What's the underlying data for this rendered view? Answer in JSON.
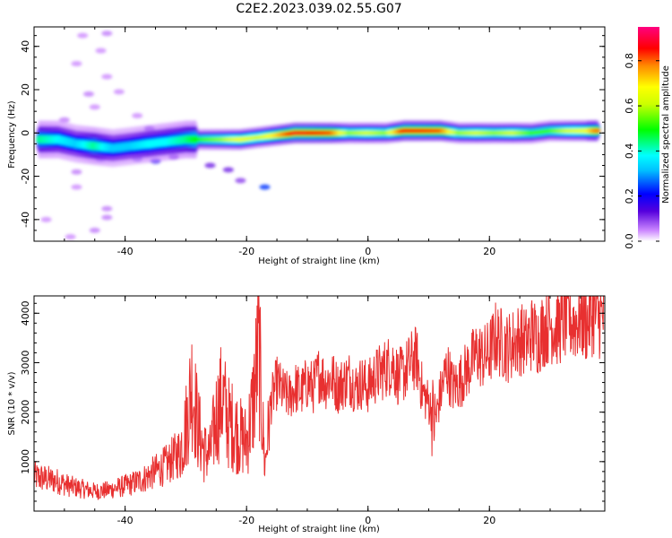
{
  "title": "C2E2.2023.039.02.55.G07",
  "chart_data": [
    {
      "type": "heatmap",
      "xlabel": "Height of straight line (km)",
      "ylabel": "Frequency (Hz)",
      "xlim": [
        -55,
        39
      ],
      "ylim": [
        -50,
        49
      ],
      "xticks": [
        -40,
        -20,
        0,
        20
      ],
      "yticks": [
        -40,
        -20,
        0,
        20,
        40
      ],
      "colorbar": {
        "label": "Normalized spectral amplitude",
        "range": [
          0,
          0.95
        ],
        "ticks": [
          0.0,
          0.2,
          0.4,
          0.6,
          0.8
        ]
      },
      "ridge": [
        {
          "x": -54,
          "y": -3,
          "amp": 0.45
        },
        {
          "x": -51,
          "y": -3,
          "amp": 0.4
        },
        {
          "x": -48,
          "y": -5,
          "amp": 0.35
        },
        {
          "x": -45,
          "y": -6,
          "amp": 0.45
        },
        {
          "x": -42,
          "y": -7,
          "amp": 0.35
        },
        {
          "x": -39,
          "y": -6,
          "amp": 0.35
        },
        {
          "x": -36,
          "y": -5,
          "amp": 0.4
        },
        {
          "x": -33,
          "y": -4,
          "amp": 0.4
        },
        {
          "x": -30,
          "y": -3,
          "amp": 0.45
        },
        {
          "x": -27,
          "y": -3,
          "amp": 0.55
        },
        {
          "x": -24,
          "y": -3,
          "amp": 0.6
        },
        {
          "x": -21,
          "y": -3,
          "amp": 0.7
        },
        {
          "x": -18,
          "y": -2,
          "amp": 0.65
        },
        {
          "x": -15,
          "y": -1,
          "amp": 0.75
        },
        {
          "x": -12,
          "y": 0,
          "amp": 0.92
        },
        {
          "x": -9,
          "y": 0,
          "amp": 0.9
        },
        {
          "x": -6,
          "y": 0,
          "amp": 0.85
        },
        {
          "x": -3,
          "y": 0,
          "amp": 0.6
        },
        {
          "x": 0,
          "y": 0,
          "amp": 0.65
        },
        {
          "x": 3,
          "y": 0,
          "amp": 0.6
        },
        {
          "x": 6,
          "y": 1,
          "amp": 0.9
        },
        {
          "x": 9,
          "y": 1,
          "amp": 0.88
        },
        {
          "x": 12,
          "y": 1,
          "amp": 0.85
        },
        {
          "x": 15,
          "y": 0,
          "amp": 0.6
        },
        {
          "x": 18,
          "y": 0,
          "amp": 0.65
        },
        {
          "x": 21,
          "y": 0,
          "amp": 0.6
        },
        {
          "x": 24,
          "y": 0,
          "amp": 0.65
        },
        {
          "x": 27,
          "y": 0,
          "amp": 0.55
        },
        {
          "x": 30,
          "y": 1,
          "amp": 0.55
        },
        {
          "x": 33,
          "y": 1,
          "amp": 0.65
        },
        {
          "x": 36,
          "y": 1,
          "amp": 0.7
        },
        {
          "x": 38,
          "y": 1,
          "amp": 0.85
        }
      ],
      "scatter_blobs": [
        {
          "x": -47,
          "y": 45,
          "amp": 0.05
        },
        {
          "x": -43,
          "y": 46,
          "amp": 0.06
        },
        {
          "x": -44,
          "y": 38,
          "amp": 0.05
        },
        {
          "x": -48,
          "y": 32,
          "amp": 0.05
        },
        {
          "x": -43,
          "y": 26,
          "amp": 0.05
        },
        {
          "x": -46,
          "y": 18,
          "amp": 0.06
        },
        {
          "x": -41,
          "y": 19,
          "amp": 0.05
        },
        {
          "x": -45,
          "y": 12,
          "amp": 0.05
        },
        {
          "x": -38,
          "y": 8,
          "amp": 0.05
        },
        {
          "x": -50,
          "y": 6,
          "amp": 0.06
        },
        {
          "x": -36,
          "y": 2,
          "amp": 0.15
        },
        {
          "x": -33,
          "y": 1,
          "amp": 0.12
        },
        {
          "x": -38,
          "y": -12,
          "amp": 0.18
        },
        {
          "x": -35,
          "y": -13,
          "amp": 0.2
        },
        {
          "x": -32,
          "y": -11,
          "amp": 0.15
        },
        {
          "x": -44,
          "y": -12,
          "amp": 0.2
        },
        {
          "x": -26,
          "y": -15,
          "amp": 0.12
        },
        {
          "x": -23,
          "y": -17,
          "amp": 0.12
        },
        {
          "x": -21,
          "y": -22,
          "amp": 0.1
        },
        {
          "x": -17,
          "y": -25,
          "amp": 0.25
        },
        {
          "x": -48,
          "y": -18,
          "amp": 0.06
        },
        {
          "x": -48,
          "y": -25,
          "amp": 0.05
        },
        {
          "x": -43,
          "y": -35,
          "amp": 0.06
        },
        {
          "x": -43,
          "y": -39,
          "amp": 0.06
        },
        {
          "x": -45,
          "y": -45,
          "amp": 0.06
        },
        {
          "x": -49,
          "y": -48,
          "amp": 0.05
        },
        {
          "x": -53,
          "y": -40,
          "amp": 0.05
        }
      ]
    },
    {
      "type": "line",
      "xlabel": "Height of straight line (km)",
      "ylabel": "SNR (10 * v/v)",
      "xlim": [
        -55,
        39
      ],
      "ylim": [
        0,
        4350
      ],
      "xticks": [
        -40,
        -20,
        0,
        20
      ],
      "yticks": [
        1000,
        2000,
        3000,
        4000
      ],
      "color": "#e83030",
      "series": [
        {
          "x": [
            -55,
            -53,
            -51,
            -49,
            -47,
            -45,
            -43,
            -41,
            -39,
            -37,
            -35,
            -33,
            -31,
            -30,
            -29,
            -28,
            -27,
            -26,
            -25,
            -24,
            -23,
            -22,
            -21,
            -20,
            -19,
            -18,
            -17,
            -16,
            -15,
            -14,
            -13,
            -12,
            -11,
            -10,
            -9,
            -8,
            -7,
            -6,
            -5,
            -4,
            -3,
            -2,
            -1,
            0,
            1,
            2,
            3,
            4,
            5,
            6,
            7,
            8,
            9,
            10,
            11,
            12,
            13,
            14,
            15,
            16,
            17,
            18,
            19,
            20,
            21,
            22,
            23,
            24,
            25,
            26,
            27,
            28,
            29,
            30,
            31,
            32,
            33,
            34,
            35,
            36,
            37,
            38,
            39
          ],
          "y": [
            700,
            650,
            600,
            500,
            450,
            400,
            420,
            480,
            550,
            650,
            800,
            950,
            1200,
            1700,
            2600,
            1700,
            1200,
            1150,
            1900,
            2300,
            1800,
            1700,
            1500,
            1400,
            2100,
            3300,
            900,
            2200,
            2600,
            2400,
            2300,
            2500,
            2400,
            2600,
            2500,
            2800,
            2600,
            2700,
            2500,
            2600,
            2700,
            2500,
            2600,
            2500,
            2700,
            2800,
            2900,
            3000,
            2700,
            2800,
            3000,
            3100,
            2400,
            2200,
            1800,
            2400,
            2900,
            2500,
            2600,
            2800,
            3000,
            3200,
            3100,
            3200,
            3500,
            3400,
            3300,
            3400,
            3500,
            3400,
            3600,
            3500,
            3700,
            3800,
            3700,
            3800,
            3900,
            3800,
            3900,
            3800,
            4000,
            3900,
            3950
          ]
        }
      ]
    }
  ]
}
